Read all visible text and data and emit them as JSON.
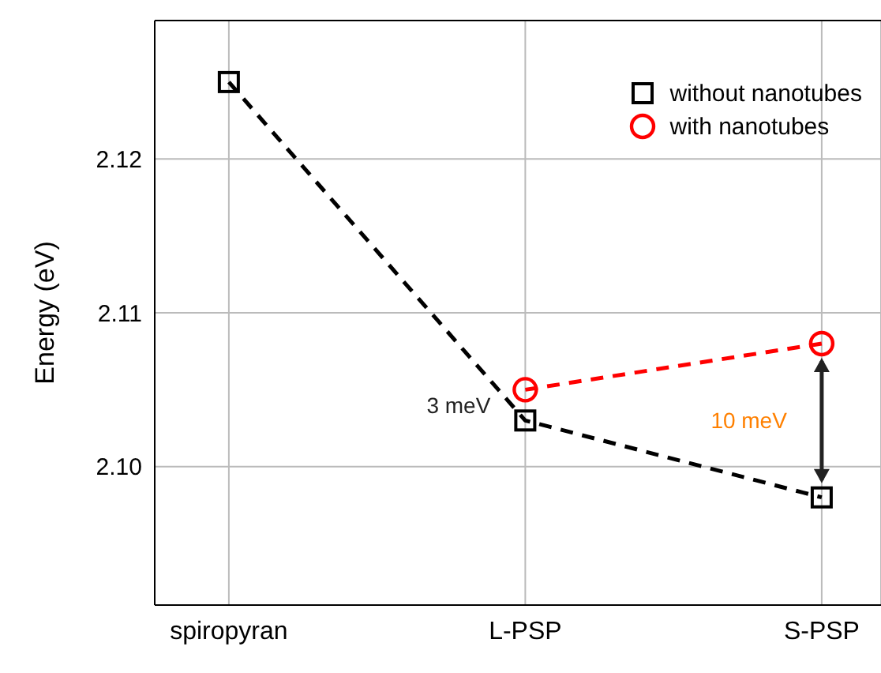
{
  "chart_data": {
    "type": "line",
    "ylabel": "Energy (eV)",
    "categories": [
      "spiropyran",
      "L-PSP",
      "S-PSP"
    ],
    "series": [
      {
        "name": "without nanotubes",
        "color": "#000000",
        "marker": "square",
        "values": [
          2.125,
          2.103,
          2.098
        ]
      },
      {
        "name": "with nanotubes",
        "color": "#ff0000",
        "marker": "circle",
        "values": [
          null,
          2.105,
          2.108
        ]
      }
    ],
    "ylim": [
      2.091,
      2.129
    ],
    "yticks": [
      {
        "value": 2.1,
        "label": "2.10"
      },
      2.11,
      2.12
    ],
    "grid": true,
    "legend": "top right",
    "line_style": "dashed",
    "annotations": [
      "3 meV",
      "10 meV"
    ]
  }
}
